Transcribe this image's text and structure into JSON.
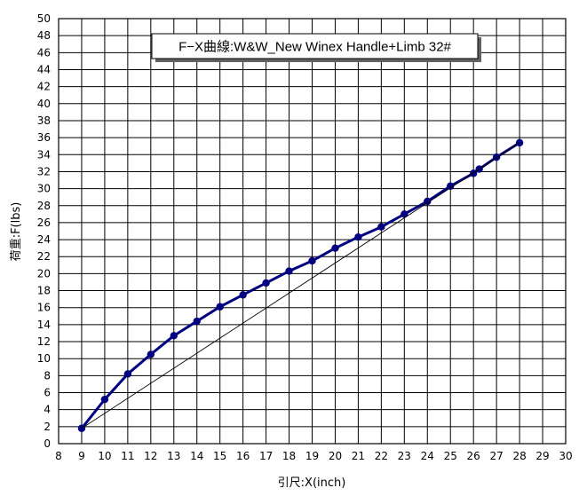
{
  "chart_data": {
    "type": "line",
    "title": "F−X曲線:W&W_New Winex Handle+Limb 32#",
    "xlabel": "引尺:X(inch)",
    "ylabel": "荷重:F(lbs)",
    "xlim": [
      8,
      30
    ],
    "ylim": [
      0,
      50
    ],
    "x_ticks": [
      8,
      9,
      10,
      11,
      12,
      13,
      14,
      15,
      16,
      17,
      18,
      19,
      20,
      21,
      22,
      23,
      24,
      25,
      26,
      27,
      28,
      29,
      30
    ],
    "y_ticks": [
      0,
      2,
      4,
      6,
      8,
      10,
      12,
      14,
      16,
      18,
      20,
      22,
      24,
      26,
      28,
      30,
      32,
      34,
      36,
      38,
      40,
      42,
      44,
      46,
      48,
      50
    ],
    "grid": true,
    "legend": "none",
    "series": [
      {
        "kind": "data",
        "color": "#000080",
        "x": [
          9,
          10,
          11,
          12,
          13,
          14,
          15,
          16,
          17,
          18,
          19,
          20,
          21,
          22,
          23,
          24,
          25,
          26,
          26.25,
          27,
          28
        ],
        "y": [
          1.8,
          5.2,
          8.2,
          10.5,
          12.7,
          14.4,
          16.1,
          17.5,
          18.9,
          20.3,
          21.5,
          23.0,
          24.3,
          25.5,
          27.0,
          28.5,
          30.3,
          31.8,
          32.3,
          33.7,
          35.4
        ]
      },
      {
        "kind": "reference",
        "color": "#000000",
        "x": [
          9,
          28
        ],
        "y": [
          1.8,
          35.4
        ]
      }
    ]
  }
}
